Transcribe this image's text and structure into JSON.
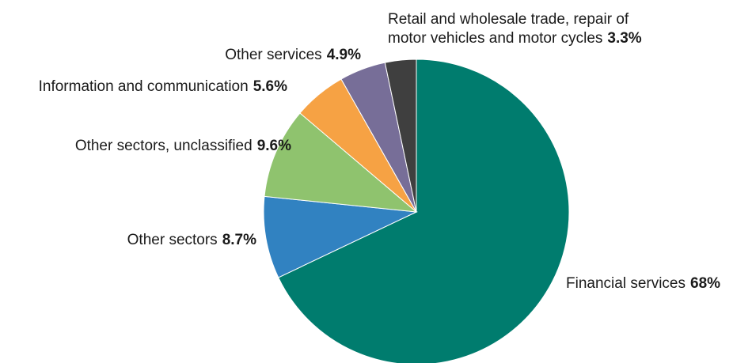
{
  "chart_data": {
    "type": "pie",
    "title": "",
    "slices": [
      {
        "label": "Financial services",
        "value": 68,
        "display": "68%",
        "color": "#007c6e"
      },
      {
        "label": "Other sectors",
        "value": 8.7,
        "display": "8.7%",
        "color": "#3182c1"
      },
      {
        "label": "Other sectors, unclassified",
        "value": 9.6,
        "display": "9.6%",
        "color": "#8fc36e"
      },
      {
        "label": "Information and communication",
        "value": 5.6,
        "display": "5.6%",
        "color": "#f6a244"
      },
      {
        "label": "Other services",
        "value": 4.9,
        "display": "4.9%",
        "color": "#776e98"
      },
      {
        "label": "Retail and wholesale trade, repair of motor vehicles and motor cycles",
        "value": 3.3,
        "display": "3.3%",
        "color": "#3f3f3f"
      }
    ],
    "label_lines": {
      "retail_line1": "Retail and wholesale trade, repair of",
      "retail_line2": "motor vehicles and motor cycles"
    },
    "start_angle": "12 o'clock",
    "direction": "clockwise",
    "legend": "none (direct labels)"
  }
}
